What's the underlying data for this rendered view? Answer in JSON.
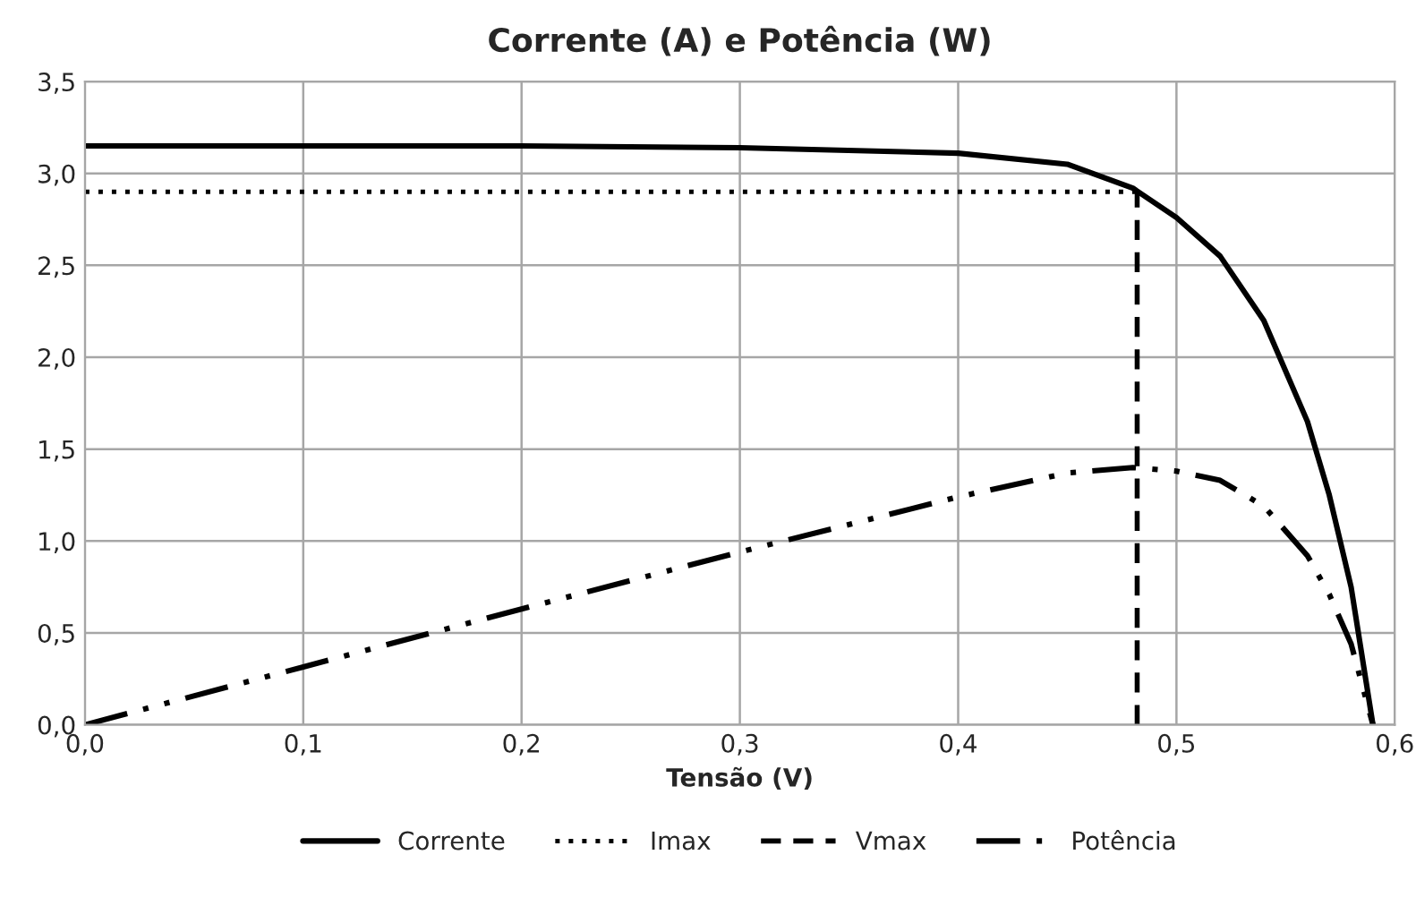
{
  "chart_data": {
    "type": "line",
    "title": "Corrente (A) e Potência (W)",
    "xlabel": "Tensão (V)",
    "xlim": [
      0,
      0.6
    ],
    "xticks": [
      {
        "value": 0,
        "label": "0,0"
      },
      {
        "value": 0.1,
        "label": "0,1"
      },
      {
        "value": 0.2,
        "label": "0,2"
      },
      {
        "value": 0.3,
        "label": "0,3"
      },
      {
        "value": 0.4,
        "label": "0,4"
      },
      {
        "value": 0.5,
        "label": "0,5"
      },
      {
        "value": 0.6,
        "label": "0,6"
      }
    ],
    "ylim": [
      0,
      3.5
    ],
    "yticks": [
      {
        "value": 0,
        "label": "0,0"
      },
      {
        "value": 0.5,
        "label": "0,5"
      },
      {
        "value": 1,
        "label": "1,0"
      },
      {
        "value": 1.5,
        "label": "1,5"
      },
      {
        "value": 2,
        "label": "2,0"
      },
      {
        "value": 2.5,
        "label": "2,5"
      },
      {
        "value": 3,
        "label": "3,0"
      },
      {
        "value": 3.5,
        "label": "3,5"
      }
    ],
    "grid": true,
    "legend": "bottom",
    "series": [
      {
        "name": "Corrente",
        "color": "#000000",
        "line_style": "solid",
        "x": [
          0,
          0.1,
          0.2,
          0.3,
          0.4,
          0.45,
          0.48,
          0.5,
          0.52,
          0.54,
          0.56,
          0.57,
          0.58,
          0.59
        ],
        "values": [
          3.15,
          3.15,
          3.15,
          3.14,
          3.11,
          3.05,
          2.92,
          2.76,
          2.55,
          2.2,
          1.65,
          1.25,
          0.75,
          0
        ]
      },
      {
        "name": "Imax",
        "color": "#000000",
        "line_style": "dotted",
        "x": [
          0,
          0.482
        ],
        "values": [
          2.9,
          2.9
        ]
      },
      {
        "name": "Vmax",
        "color": "#000000",
        "line_style": "dashed",
        "x": [
          0.482,
          0.482
        ],
        "values": [
          0,
          2.9
        ]
      },
      {
        "name": "Potência",
        "color": "#000000",
        "line_style": "dashdot",
        "x": [
          0,
          0.1,
          0.2,
          0.3,
          0.4,
          0.45,
          0.48,
          0.5,
          0.52,
          0.54,
          0.56,
          0.57,
          0.58,
          0.59
        ],
        "values": [
          0,
          0.315,
          0.63,
          0.94,
          1.24,
          1.37,
          1.4,
          1.38,
          1.33,
          1.19,
          0.92,
          0.71,
          0.44,
          0
        ]
      }
    ]
  }
}
